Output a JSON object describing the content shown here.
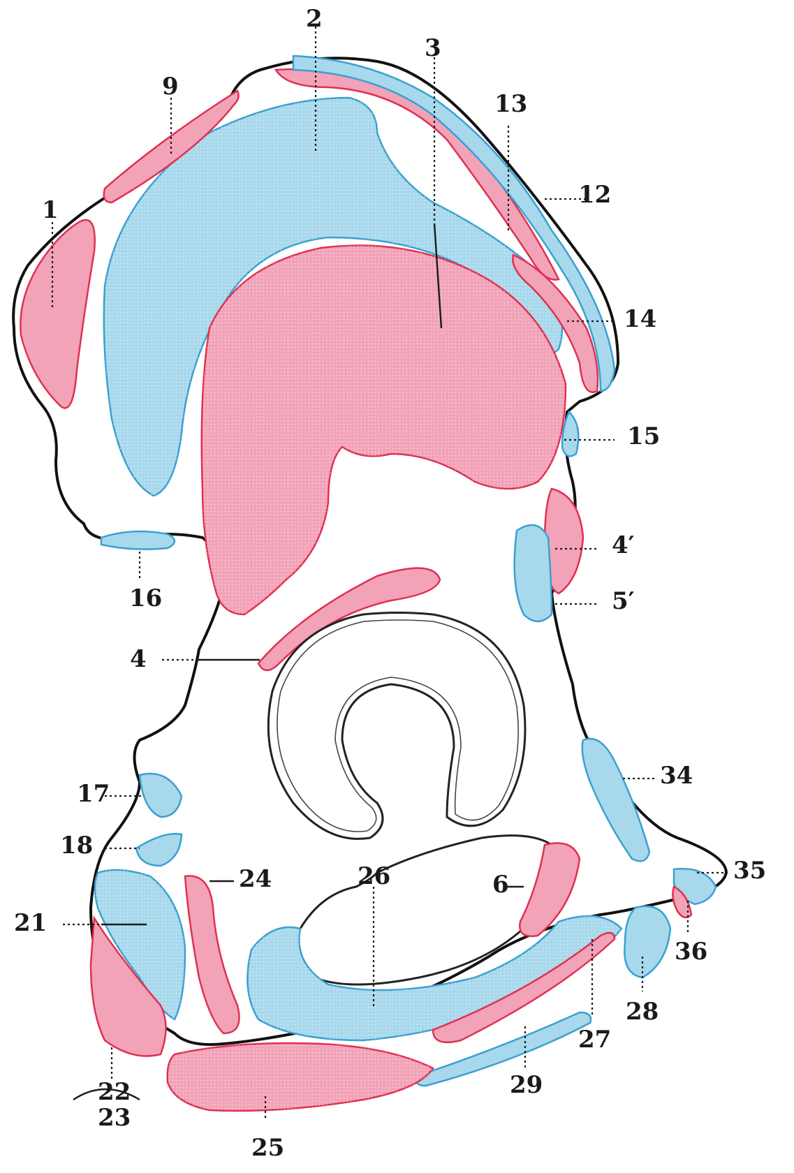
{
  "labels": {
    "l1": "1",
    "l2": "2",
    "l3": "3",
    "l4": "4",
    "l4p": "4′",
    "l5p": "5′",
    "l6": "6",
    "l9": "9",
    "l12": "12",
    "l13": "13",
    "l14": "14",
    "l15": "15",
    "l16": "16",
    "l17": "17",
    "l18": "18",
    "l21": "21",
    "l22": "22",
    "l23": "23",
    "l24": "24",
    "l25": "25",
    "l26": "26",
    "l27": "27",
    "l28": "28",
    "l29": "29",
    "l34": "34",
    "l35": "35",
    "l36": "36"
  },
  "colors": {
    "muscle_origin": "#f2a3b8",
    "muscle_insertion": "#a8d8ec",
    "outline": "#111111"
  }
}
